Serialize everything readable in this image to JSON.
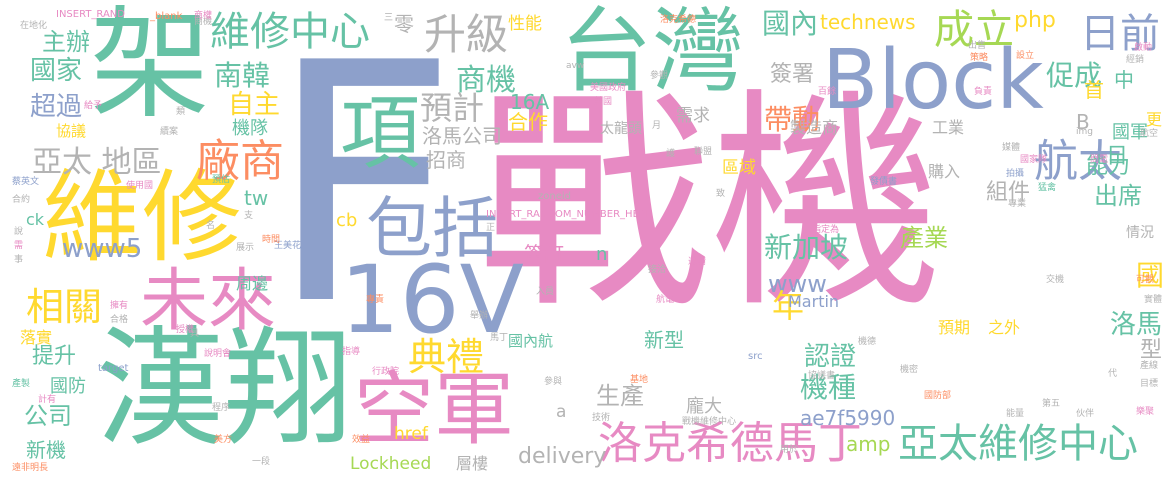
{
  "colors": {
    "pink": "#e78ac3",
    "green": "#66c2a5",
    "blue": "#8da0cb",
    "yellow": "#ffd92f",
    "orange": "#fc8d62",
    "gray": "#b3b3b3",
    "lime": "#a6d854",
    "tan": "#e5c494"
  },
  "words": [
    {
      "text": "戰機",
      "color": "pink"
    },
    {
      "text": "F",
      "color": "blue"
    },
    {
      "text": "台灣",
      "color": "green"
    },
    {
      "text": "Block",
      "color": "blue"
    },
    {
      "text": "架",
      "color": "green"
    },
    {
      "text": "漢翔",
      "color": "green"
    },
    {
      "text": "維修",
      "color": "yellow"
    },
    {
      "text": "16V",
      "color": "blue"
    },
    {
      "text": "空軍",
      "color": "pink"
    },
    {
      "text": "項",
      "color": "green"
    },
    {
      "text": "包括",
      "color": "blue"
    },
    {
      "text": "未來",
      "color": "pink"
    },
    {
      "text": "維修中心",
      "color": "green"
    },
    {
      "text": "升級",
      "color": "gray"
    },
    {
      "text": "成立",
      "color": "lime"
    },
    {
      "text": "日前",
      "color": "blue"
    },
    {
      "text": "洛克希德馬丁",
      "color": "pink"
    },
    {
      "text": "亞太維修中心",
      "color": "green"
    },
    {
      "text": "航太",
      "color": "blue"
    },
    {
      "text": "廠商",
      "color": "orange"
    },
    {
      "text": "預計",
      "color": "gray"
    },
    {
      "text": "相關",
      "color": "yellow"
    },
    {
      "text": "典禮",
      "color": "yellow"
    },
    {
      "text": "國家",
      "color": "green"
    },
    {
      "text": "主辦",
      "color": "green"
    },
    {
      "text": "超過",
      "color": "blue"
    },
    {
      "text": "南韓",
      "color": "green"
    },
    {
      "text": "自主",
      "color": "yellow"
    },
    {
      "text": "亞太 地區",
      "color": "gray"
    },
    {
      "text": "商機",
      "color": "green"
    },
    {
      "text": "國內",
      "color": "green"
    },
    {
      "text": "technews",
      "color": "yellow"
    },
    {
      "text": "php",
      "color": "yellow"
    },
    {
      "text": "促成",
      "color": "green"
    },
    {
      "text": "帶動",
      "color": "orange"
    },
    {
      "text": "簽署",
      "color": "gray"
    },
    {
      "text": "新加坡",
      "color": "green"
    },
    {
      "text": "www5",
      "color": "blue"
    },
    {
      "text": "www",
      "color": "blue"
    },
    {
      "text": "年",
      "color": "yellow"
    },
    {
      "text": "機種",
      "color": "green"
    },
    {
      "text": "組件",
      "color": "gray"
    },
    {
      "text": "出席",
      "color": "green"
    },
    {
      "text": "能力",
      "color": "green"
    },
    {
      "text": "洛馬",
      "color": "green"
    },
    {
      "text": "產業",
      "color": "lime"
    },
    {
      "text": "認證",
      "color": "green"
    },
    {
      "text": "公司",
      "color": "green"
    },
    {
      "text": "提升",
      "color": "green"
    },
    {
      "text": "新機",
      "color": "green"
    },
    {
      "text": "Lockheed",
      "color": "lime"
    },
    {
      "text": "delivery",
      "color": "gray"
    },
    {
      "text": "amp",
      "color": "lime"
    },
    {
      "text": "ae7f5990",
      "color": "blue"
    },
    {
      "text": "16A",
      "color": "green"
    },
    {
      "text": "合作",
      "color": "yellow"
    },
    {
      "text": "洛馬公司",
      "color": "gray"
    },
    {
      "text": "招商",
      "color": "gray"
    },
    {
      "text": "製造商",
      "color": "gray"
    },
    {
      "text": "工業",
      "color": "gray"
    },
    {
      "text": "國軍",
      "color": "green"
    },
    {
      "text": "B",
      "color": "gray"
    },
    {
      "text": "日",
      "color": "green"
    },
    {
      "text": "中",
      "color": "green"
    },
    {
      "text": "首",
      "color": "yellow"
    },
    {
      "text": "國",
      "color": "yellow"
    },
    {
      "text": "型",
      "color": "gray"
    },
    {
      "text": "區域",
      "color": "yellow"
    },
    {
      "text": "需求",
      "color": "gray"
    },
    {
      "text": "購入",
      "color": "gray"
    },
    {
      "text": "生產",
      "color": "gray"
    },
    {
      "text": "新型",
      "color": "green"
    },
    {
      "text": "簽訂",
      "color": "pink"
    },
    {
      "text": "機隊",
      "color": "green"
    },
    {
      "text": "性能",
      "color": "yellow"
    },
    {
      "text": "零",
      "color": "gray"
    },
    {
      "text": "tw",
      "color": "green"
    },
    {
      "text": "cb",
      "color": "yellow"
    },
    {
      "text": "n",
      "color": "green"
    },
    {
      "text": "Martin",
      "color": "blue"
    },
    {
      "text": "預期",
      "color": "yellow"
    },
    {
      "text": "之外",
      "color": "yellow"
    },
    {
      "text": "龐大",
      "color": "gray"
    },
    {
      "text": "層樓",
      "color": "gray"
    },
    {
      "text": "href",
      "color": "yellow"
    },
    {
      "text": "周邊",
      "color": "green"
    },
    {
      "text": "落實",
      "color": "yellow"
    },
    {
      "text": "國防",
      "color": "green"
    },
    {
      "text": "協議",
      "color": "yellow"
    },
    {
      "text": "國內航",
      "color": "green"
    },
    {
      "text": "太龍頭",
      "color": "gray"
    },
    {
      "text": "情況",
      "color": "gray"
    },
    {
      "text": "更",
      "color": "yellow"
    },
    {
      "text": "a",
      "color": "gray"
    },
    {
      "text": "ck",
      "color": "green"
    },
    {
      "text": "_blank",
      "color": "orange"
    },
    {
      "text": "INSERT_RAND",
      "color": "pink"
    },
    {
      "text": "INSERT_RANDOM_NUMBER_HERE",
      "color": "pink"
    },
    {
      "text": "zoneid",
      "color": "gray"
    },
    {
      "text": "target",
      "color": "blue"
    },
    {
      "text": "src",
      "color": "blue"
    },
    {
      "text": "img",
      "color": "gray"
    },
    {
      "text": "avw",
      "color": "gray"
    },
    {
      "text": "在地化",
      "color": "gray"
    },
    {
      "text": "蔡英文",
      "color": "blue"
    },
    {
      "text": "王美花",
      "color": "blue"
    },
    {
      "text": "美國政府",
      "color": "pink"
    },
    {
      "text": "美國",
      "color": "pink"
    },
    {
      "text": "國防部",
      "color": "orange"
    },
    {
      "text": "行政院",
      "color": "pink"
    },
    {
      "text": "戰機維修中心",
      "color": "gray"
    },
    {
      "text": "發債書",
      "color": "blue"
    },
    {
      "text": "國家隊",
      "color": "pink"
    },
    {
      "text": "猛禽",
      "color": "green"
    },
    {
      "text": "商機",
      "color": "gray"
    },
    {
      "text": "出售",
      "color": "gray"
    },
    {
      "text": "設立",
      "color": "orange"
    },
    {
      "text": "策略",
      "color": "orange"
    },
    {
      "text": "經銷",
      "color": "gray"
    },
    {
      "text": "啟動",
      "color": "pink"
    },
    {
      "text": "參觀",
      "color": "gray"
    },
    {
      "text": "百餘",
      "color": "pink"
    },
    {
      "text": "負責",
      "color": "pink"
    },
    {
      "text": "航空",
      "color": "gray"
    },
    {
      "text": "拍攝",
      "color": "blue"
    },
    {
      "text": "媒體",
      "color": "gray"
    },
    {
      "text": "聯盟",
      "color": "gray"
    },
    {
      "text": "技術",
      "color": "gray"
    },
    {
      "text": "指定為",
      "color": "pink"
    },
    {
      "text": "航電",
      "color": "pink"
    },
    {
      "text": "入員",
      "color": "gray"
    },
    {
      "text": "基地",
      "color": "orange"
    },
    {
      "text": "參與",
      "color": "gray"
    },
    {
      "text": "機密",
      "color": "gray"
    },
    {
      "text": "機德",
      "color": "gray"
    },
    {
      "text": "能量",
      "color": "gray"
    },
    {
      "text": "第五",
      "color": "gray"
    },
    {
      "text": "伙伴",
      "color": "gray"
    },
    {
      "text": "樂聚",
      "color": "pink"
    },
    {
      "text": "產線",
      "color": "gray"
    },
    {
      "text": "目標",
      "color": "gray"
    },
    {
      "text": "實體",
      "color": "gray"
    },
    {
      "text": "可觀",
      "color": "orange"
    },
    {
      "text": "交機",
      "color": "gray"
    },
    {
      "text": "協議書",
      "color": "gray"
    },
    {
      "text": "用於",
      "color": "gray"
    },
    {
      "text": "一段",
      "color": "gray"
    },
    {
      "text": "美方",
      "color": "orange"
    },
    {
      "text": "效益",
      "color": "orange"
    },
    {
      "text": "程序",
      "color": "gray"
    },
    {
      "text": "說明會",
      "color": "pink"
    },
    {
      "text": "授權",
      "color": "pink"
    },
    {
      "text": "計有",
      "color": "pink"
    },
    {
      "text": "產製",
      "color": "green"
    },
    {
      "text": "遠非明長",
      "color": "orange"
    },
    {
      "text": "使用國",
      "color": "pink"
    },
    {
      "text": "預估",
      "color": "green"
    },
    {
      "text": "合約",
      "color": "gray"
    },
    {
      "text": "合格",
      "color": "gray"
    },
    {
      "text": "擁有",
      "color": "pink"
    },
    {
      "text": "給予",
      "color": "pink"
    },
    {
      "text": "續案",
      "color": "gray"
    },
    {
      "text": "時間",
      "color": "orange"
    },
    {
      "text": "展示",
      "color": "gray"
    },
    {
      "text": "邀請",
      "color": "pink"
    },
    {
      "text": "專業",
      "color": "gray"
    },
    {
      "text": "問電",
      "color": "pink"
    },
    {
      "text": "馬丁",
      "color": "gray"
    },
    {
      "text": "指導",
      "color": "pink"
    },
    {
      "text": "專責",
      "color": "orange"
    },
    {
      "text": "舉辦",
      "color": "gray"
    },
    {
      "text": "接洽",
      "color": "gray"
    },
    {
      "text": "致",
      "color": "gray"
    },
    {
      "text": "正",
      "color": "gray"
    },
    {
      "text": "具",
      "color": "gray"
    },
    {
      "text": "代",
      "color": "gray"
    },
    {
      "text": "護",
      "color": "gray"
    },
    {
      "text": "月",
      "color": "gray"
    },
    {
      "text": "類",
      "color": "gray"
    },
    {
      "text": "商權",
      "color": "pink"
    },
    {
      "text": "洛克希德",
      "color": "orange"
    },
    {
      "text": "三",
      "color": "gray"
    },
    {
      "text": "支",
      "color": "gray"
    },
    {
      "text": "說",
      "color": "gray"
    },
    {
      "text": "事",
      "color": "gray"
    },
    {
      "text": "需",
      "color": "pink"
    },
    {
      "text": "名",
      "color": "gray"
    }
  ]
}
